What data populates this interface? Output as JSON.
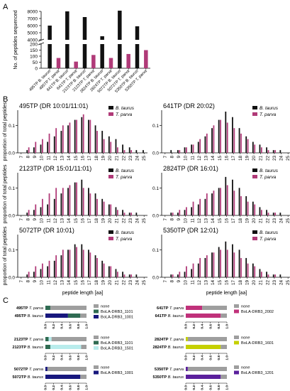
{
  "colors": {
    "taurus": "#111111",
    "parva": "#b03a78",
    "none": "#9e9e9e",
    "drb3_1001": "#17177d",
    "drb3_1101": "#2f6b52",
    "drb3_1501": "#b8ecec",
    "drb3_2002": "#c0317a",
    "drb3_1601": "#c5d000",
    "drb3_1201": "#5a1f9c"
  },
  "panel_labels": {
    "a": "A",
    "b": "B",
    "c": "C"
  },
  "chart_data": [
    {
      "type": "bar",
      "panel": "A",
      "ylabel": "No. of peptides sequenced",
      "y_axis_break": true,
      "upper_ticks": [
        4000,
        5000,
        6000,
        7000,
        8000
      ],
      "lower_ticks": [
        0,
        50,
        100,
        150,
        200
      ],
      "categories": [
        "495TP B. taurus",
        "495TP T. parva",
        "641TP B. taurus",
        "641TP T. parva",
        "2123TP B. taurus",
        "2123TP T. parva",
        "2824TP B. taurus",
        "2824TP T. parva",
        "5072TP B. taurus",
        "5072TP T. parva",
        "5350TP B. taurus",
        "5350TP T. parva"
      ],
      "values": [
        6000,
        85,
        8000,
        55,
        7200,
        110,
        4500,
        85,
        8100,
        118,
        5900,
        150
      ],
      "bar_colors": [
        "taurus",
        "parva",
        "taurus",
        "parva",
        "taurus",
        "parva",
        "taurus",
        "parva",
        "taurus",
        "parva",
        "taurus",
        "parva"
      ]
    },
    {
      "type": "bar",
      "panel": "B",
      "grouped": true,
      "xlabel": "peptide length [aa]",
      "ylabel": "proportion of total peptides",
      "ylim": [
        0,
        0.15
      ],
      "yticks": [
        0.0,
        0.1
      ],
      "x": [
        7,
        8,
        9,
        10,
        11,
        12,
        13,
        14,
        15,
        16,
        17,
        18,
        19,
        20,
        21,
        22,
        23,
        24,
        25
      ],
      "subplots": [
        {
          "title": "495TP (DR 10:01/11:01)",
          "series": [
            {
              "name": "B. taurus",
              "values": [
                0.0,
                0.01,
                0.02,
                0.03,
                0.04,
                0.06,
                0.08,
                0.1,
                0.12,
                0.13,
                0.12,
                0.1,
                0.08,
                0.06,
                0.05,
                0.03,
                0.02,
                0.01,
                0.01
              ]
            },
            {
              "name": "T. parva",
              "values": [
                0.0,
                0.02,
                0.04,
                0.05,
                0.07,
                0.09,
                0.1,
                0.11,
                0.12,
                0.14,
                0.12,
                0.08,
                0.05,
                0.04,
                0.02,
                0.01,
                0.01,
                0.0,
                0.0
              ]
            }
          ]
        },
        {
          "title": "641TP (DR 20:02)",
          "series": [
            {
              "name": "B. taurus",
              "values": [
                0.0,
                0.01,
                0.01,
                0.02,
                0.03,
                0.04,
                0.06,
                0.09,
                0.12,
                0.15,
                0.13,
                0.09,
                0.06,
                0.04,
                0.03,
                0.02,
                0.01,
                0.01,
                0.0
              ]
            },
            {
              "name": "T. parva",
              "values": [
                0.0,
                0.0,
                0.01,
                0.02,
                0.03,
                0.05,
                0.07,
                0.1,
                0.12,
                0.11,
                0.09,
                0.07,
                0.05,
                0.03,
                0.02,
                0.01,
                0.01,
                0.0,
                0.0
              ]
            }
          ]
        },
        {
          "title": "2123TP (DR 15:01/11:01)",
          "series": [
            {
              "name": "B. taurus",
              "values": [
                0.0,
                0.01,
                0.02,
                0.03,
                0.04,
                0.06,
                0.08,
                0.1,
                0.12,
                0.13,
                0.1,
                0.08,
                0.06,
                0.04,
                0.03,
                0.02,
                0.01,
                0.01,
                0.0
              ]
            },
            {
              "name": "T. parva",
              "values": [
                0.0,
                0.02,
                0.04,
                0.06,
                0.08,
                0.1,
                0.1,
                0.11,
                0.12,
                0.1,
                0.08,
                0.06,
                0.05,
                0.04,
                0.02,
                0.01,
                0.01,
                0.0,
                0.0
              ]
            }
          ]
        },
        {
          "title": "2824TP (DR 16:01)",
          "series": [
            {
              "name": "B. taurus",
              "values": [
                0.0,
                0.01,
                0.01,
                0.02,
                0.03,
                0.04,
                0.06,
                0.08,
                0.1,
                0.14,
                0.13,
                0.1,
                0.07,
                0.05,
                0.03,
                0.02,
                0.01,
                0.01,
                0.0
              ]
            },
            {
              "name": "T. parva",
              "values": [
                0.0,
                0.01,
                0.02,
                0.03,
                0.05,
                0.06,
                0.08,
                0.09,
                0.1,
                0.11,
                0.09,
                0.07,
                0.05,
                0.04,
                0.02,
                0.01,
                0.01,
                0.0,
                0.0
              ]
            }
          ]
        },
        {
          "title": "5072TP (DR 10:01)",
          "series": [
            {
              "name": "B. taurus",
              "values": [
                0.0,
                0.01,
                0.02,
                0.03,
                0.04,
                0.06,
                0.08,
                0.1,
                0.12,
                0.12,
                0.1,
                0.08,
                0.06,
                0.04,
                0.03,
                0.02,
                0.01,
                0.01,
                0.0
              ]
            },
            {
              "name": "T. parva",
              "values": [
                0.0,
                0.02,
                0.04,
                0.05,
                0.06,
                0.08,
                0.1,
                0.1,
                0.11,
                0.1,
                0.09,
                0.07,
                0.05,
                0.04,
                0.02,
                0.01,
                0.01,
                0.0,
                0.0
              ]
            }
          ]
        },
        {
          "title": "5350TP (DR 12:01)",
          "series": [
            {
              "name": "B. taurus",
              "values": [
                0.0,
                0.01,
                0.01,
                0.02,
                0.03,
                0.05,
                0.07,
                0.09,
                0.11,
                0.13,
                0.12,
                0.1,
                0.07,
                0.05,
                0.03,
                0.02,
                0.01,
                0.01,
                0.0
              ]
            },
            {
              "name": "T. parva",
              "values": [
                0.0,
                0.01,
                0.02,
                0.04,
                0.05,
                0.07,
                0.08,
                0.09,
                0.1,
                0.1,
                0.09,
                0.07,
                0.05,
                0.04,
                0.02,
                0.01,
                0.01,
                0.0,
                0.0
              ]
            }
          ]
        }
      ]
    },
    {
      "type": "bar",
      "panel": "C",
      "stacked_horizontal": true,
      "xlim": [
        0,
        1
      ],
      "xticks": [
        0.0,
        0.2,
        0.4,
        0.6,
        0.8,
        1.0
      ],
      "groups": [
        {
          "rows": [
            {
              "sample": "495TP",
              "species": "T. parva",
              "segments": [
                [
                  "drb3_1001",
                  0.0
                ],
                [
                  "drb3_1101",
                  0.12
                ],
                [
                  "none",
                  0.88
                ]
              ]
            },
            {
              "sample": "495TP",
              "species": "B. taurus",
              "segments": [
                [
                  "drb3_1001",
                  0.55
                ],
                [
                  "drb3_1101",
                  0.3
                ],
                [
                  "none",
                  0.15
                ]
              ]
            }
          ],
          "legend": [
            [
              "none",
              "none"
            ],
            [
              "drb3_1101",
              "BoLA-DRB3_1101"
            ],
            [
              "drb3_1001",
              "BoLA-DRB3_1001"
            ]
          ]
        },
        {
          "rows": [
            {
              "sample": "641TP",
              "species": "T. parva",
              "segments": [
                [
                  "drb3_2002",
                  0.4
                ],
                [
                  "none",
                  0.6
                ]
              ]
            },
            {
              "sample": "641TP",
              "species": "B. taurus",
              "segments": [
                [
                  "drb3_2002",
                  0.85
                ],
                [
                  "none",
                  0.15
                ]
              ]
            }
          ],
          "legend": [
            [
              "none",
              "none"
            ],
            [
              "drb3_2002",
              "BoLA-DRB3_2002"
            ]
          ]
        },
        {
          "rows": [
            {
              "sample": "2123TP",
              "species": "T. parva",
              "segments": [
                [
                  "drb3_1101",
                  0.08
                ],
                [
                  "drb3_1501",
                  0.07
                ],
                [
                  "none",
                  0.85
                ]
              ]
            },
            {
              "sample": "2123TP",
              "species": "B. taurus",
              "segments": [
                [
                  "drb3_1101",
                  0.12
                ],
                [
                  "drb3_1501",
                  0.75
                ],
                [
                  "none",
                  0.13
                ]
              ]
            }
          ],
          "legend": [
            [
              "none",
              "none"
            ],
            [
              "drb3_1101",
              "BoLA-DRB3_1101"
            ],
            [
              "drb3_1501",
              "BoLA-DRB3_1501"
            ]
          ]
        },
        {
          "rows": [
            {
              "sample": "2824TP",
              "species": "T. parva",
              "segments": [
                [
                  "drb3_1601",
                  0.05
                ],
                [
                  "none",
                  0.95
                ]
              ]
            },
            {
              "sample": "2824TP",
              "species": "B. taurus",
              "segments": [
                [
                  "drb3_1601",
                  0.85
                ],
                [
                  "none",
                  0.15
                ]
              ]
            }
          ],
          "legend": [
            [
              "none",
              "none"
            ],
            [
              "drb3_1601",
              "BoLA-DRB3_1601"
            ]
          ]
        },
        {
          "rows": [
            {
              "sample": "5072TP",
              "species": "T. parva",
              "segments": [
                [
                  "drb3_1001",
                  0.05
                ],
                [
                  "none",
                  0.95
                ]
              ]
            },
            {
              "sample": "5072TP",
              "species": "B. taurus",
              "segments": [
                [
                  "drb3_1001",
                  0.85
                ],
                [
                  "none",
                  0.15
                ]
              ]
            }
          ],
          "legend": [
            [
              "none",
              "none"
            ],
            [
              "drb3_1001",
              "BoLA-DRB3_1001"
            ]
          ]
        },
        {
          "rows": [
            {
              "sample": "5350TP",
              "species": "T. parva",
              "segments": [
                [
                  "drb3_1201",
                  0.05
                ],
                [
                  "none",
                  0.95
                ]
              ]
            },
            {
              "sample": "5350TP",
              "species": "B. taurus",
              "segments": [
                [
                  "drb3_1201",
                  0.85
                ],
                [
                  "none",
                  0.15
                ]
              ]
            }
          ],
          "legend": [
            [
              "none",
              "none"
            ],
            [
              "drb3_1201",
              "BoLA-DRB3_1201"
            ]
          ]
        }
      ]
    }
  ]
}
